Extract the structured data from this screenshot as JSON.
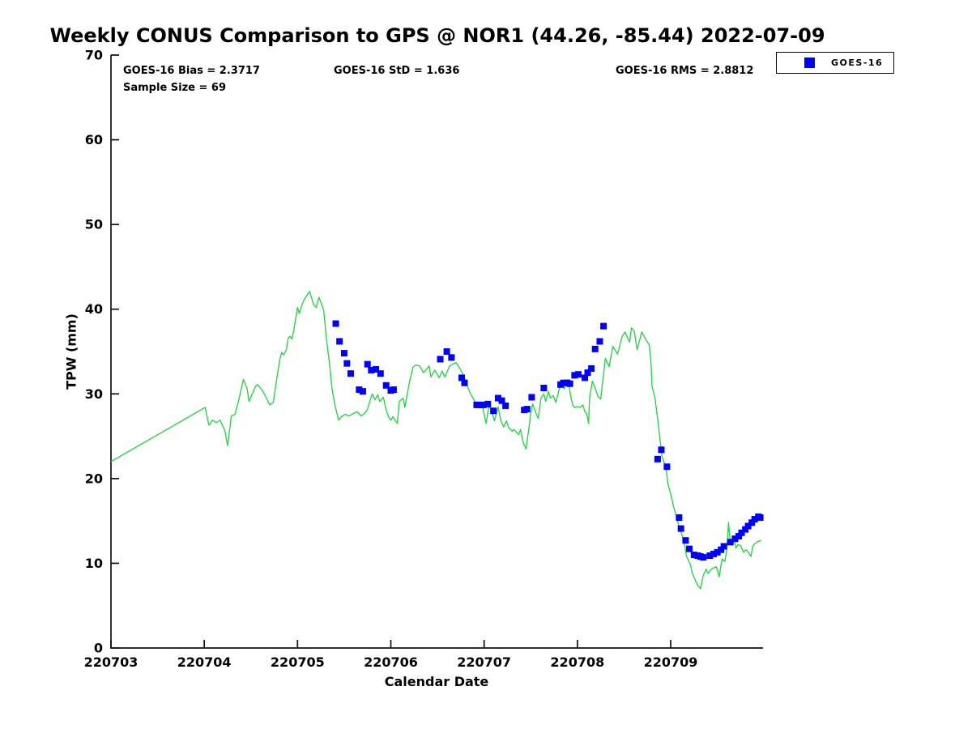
{
  "header": {
    "title": "Weekly CONUS Comparison to GPS @ NOR1 (44.26, -85.44) 2022-07-09"
  },
  "stats": {
    "bias": "GOES-16 Bias = 2.3717",
    "std": "GOES-16 StD = 1.636",
    "rms": "GOES-16 RMS = 2.8812",
    "sample_size": "Sample Size = 69"
  },
  "legend": {
    "label": "GOES-16",
    "marker": "square",
    "marker_color": "#0000ff",
    "position": "top-right"
  },
  "colors": {
    "gps_line": "#2bd44a",
    "goes16_marker": "#0000ff",
    "axis": "#111111",
    "background": "#ffffff"
  },
  "chart_data": {
    "type": "line",
    "title": "Weekly CONUS Comparison to GPS @ NOR1 (44.26, -85.44) 2022-07-09",
    "xlabel": "Calendar Date",
    "ylabel": "TPW (mm)",
    "ylim": [
      0,
      70
    ],
    "xlim_days": [
      0,
      6.99
    ],
    "grid": false,
    "yticks": [
      0,
      10,
      20,
      30,
      40,
      50,
      60,
      70
    ],
    "xtick_labels": [
      "220703",
      "220704",
      "220705",
      "220706",
      "220707",
      "220708",
      "220709"
    ],
    "x_unit": "days since 220703",
    "bias": 2.3717,
    "std": 1.636,
    "rms": 2.8812,
    "sample_size": 69,
    "series": [
      {
        "name": "GPS",
        "type": "line",
        "color": "#2bd44a",
        "points": [
          [
            0.0,
            22.0
          ],
          [
            1.01,
            28.4
          ],
          [
            1.05,
            26.3
          ],
          [
            1.09,
            26.9
          ],
          [
            1.13,
            26.6
          ],
          [
            1.17,
            26.9
          ],
          [
            1.22,
            25.7
          ],
          [
            1.25,
            23.9
          ],
          [
            1.29,
            27.4
          ],
          [
            1.33,
            27.6
          ],
          [
            1.37,
            29.3
          ],
          [
            1.42,
            31.7
          ],
          [
            1.46,
            30.6
          ],
          [
            1.48,
            29.1
          ],
          [
            1.55,
            30.9
          ],
          [
            1.57,
            31.1
          ],
          [
            1.63,
            30.3
          ],
          [
            1.68,
            29.2
          ],
          [
            1.7,
            28.7
          ],
          [
            1.74,
            29.0
          ],
          [
            1.78,
            32.0
          ],
          [
            1.81,
            34.1
          ],
          [
            1.83,
            34.9
          ],
          [
            1.85,
            34.6
          ],
          [
            1.88,
            35.2
          ],
          [
            1.9,
            36.6
          ],
          [
            1.92,
            36.8
          ],
          [
            1.94,
            36.5
          ],
          [
            1.96,
            37.5
          ],
          [
            2.0,
            40.2
          ],
          [
            2.02,
            39.5
          ],
          [
            2.05,
            40.6
          ],
          [
            2.08,
            41.3
          ],
          [
            2.13,
            42.1
          ],
          [
            2.17,
            40.6
          ],
          [
            2.2,
            40.2
          ],
          [
            2.23,
            41.4
          ],
          [
            2.28,
            39.9
          ],
          [
            2.31,
            36.5
          ],
          [
            2.34,
            33.8
          ],
          [
            2.37,
            30.6
          ],
          [
            2.4,
            28.7
          ],
          [
            2.44,
            26.9
          ],
          [
            2.47,
            27.3
          ],
          [
            2.51,
            27.6
          ],
          [
            2.55,
            27.4
          ],
          [
            2.6,
            27.7
          ],
          [
            2.64,
            27.9
          ],
          [
            2.68,
            27.4
          ],
          [
            2.72,
            27.7
          ],
          [
            2.75,
            28.2
          ],
          [
            2.78,
            29.3
          ],
          [
            2.8,
            30.0
          ],
          [
            2.83,
            29.3
          ],
          [
            2.86,
            29.9
          ],
          [
            2.88,
            29.1
          ],
          [
            2.92,
            29.6
          ],
          [
            2.95,
            28.1
          ],
          [
            2.98,
            27.2
          ],
          [
            3.0,
            26.9
          ],
          [
            3.02,
            27.3
          ],
          [
            3.07,
            26.5
          ],
          [
            3.09,
            29.1
          ],
          [
            3.13,
            29.5
          ],
          [
            3.15,
            28.4
          ],
          [
            3.2,
            31.4
          ],
          [
            3.24,
            33.2
          ],
          [
            3.27,
            33.4
          ],
          [
            3.31,
            33.3
          ],
          [
            3.35,
            32.5
          ],
          [
            3.39,
            33.0
          ],
          [
            3.41,
            33.3
          ],
          [
            3.43,
            32.0
          ],
          [
            3.47,
            32.8
          ],
          [
            3.52,
            31.9
          ],
          [
            3.55,
            32.7
          ],
          [
            3.58,
            32.0
          ],
          [
            3.63,
            33.3
          ],
          [
            3.66,
            33.5
          ],
          [
            3.7,
            33.7
          ],
          [
            3.74,
            33.0
          ],
          [
            3.78,
            32.2
          ],
          [
            3.82,
            30.9
          ],
          [
            3.85,
            30.1
          ],
          [
            3.88,
            29.5
          ],
          [
            3.92,
            28.8
          ],
          [
            3.95,
            28.9
          ],
          [
            3.98,
            28.6
          ],
          [
            4.0,
            27.6
          ],
          [
            4.02,
            26.5
          ],
          [
            4.05,
            28.4
          ],
          [
            4.06,
            28.5
          ],
          [
            4.09,
            27.7
          ],
          [
            4.11,
            26.8
          ],
          [
            4.13,
            27.6
          ],
          [
            4.15,
            28.5
          ],
          [
            4.18,
            26.8
          ],
          [
            4.21,
            26.1
          ],
          [
            4.24,
            26.8
          ],
          [
            4.26,
            26.1
          ],
          [
            4.3,
            25.6
          ],
          [
            4.32,
            25.8
          ],
          [
            4.37,
            25.2
          ],
          [
            4.39,
            25.8
          ],
          [
            4.42,
            24.2
          ],
          [
            4.45,
            23.5
          ],
          [
            4.51,
            28.4
          ],
          [
            4.52,
            28.8
          ],
          [
            4.56,
            27.6
          ],
          [
            4.58,
            27.1
          ],
          [
            4.61,
            29.5
          ],
          [
            4.64,
            30.0
          ],
          [
            4.66,
            29.1
          ],
          [
            4.69,
            30.3
          ],
          [
            4.71,
            29.5
          ],
          [
            4.74,
            29.8
          ],
          [
            4.77,
            29.0
          ],
          [
            4.82,
            31.2
          ],
          [
            4.86,
            30.6
          ],
          [
            4.9,
            31.7
          ],
          [
            4.93,
            29.6
          ],
          [
            4.95,
            28.7
          ],
          [
            4.97,
            28.4
          ],
          [
            5.0,
            28.5
          ],
          [
            5.03,
            28.4
          ],
          [
            5.06,
            28.7
          ],
          [
            5.08,
            27.9
          ],
          [
            5.1,
            27.6
          ],
          [
            5.12,
            26.5
          ],
          [
            5.13,
            29.5
          ],
          [
            5.16,
            31.5
          ],
          [
            5.19,
            30.7
          ],
          [
            5.22,
            29.7
          ],
          [
            5.25,
            29.4
          ],
          [
            5.3,
            34.2
          ],
          [
            5.34,
            33.2
          ],
          [
            5.38,
            35.6
          ],
          [
            5.43,
            34.7
          ],
          [
            5.48,
            36.8
          ],
          [
            5.51,
            37.3
          ],
          [
            5.56,
            36.1
          ],
          [
            5.58,
            37.8
          ],
          [
            5.61,
            37.4
          ],
          [
            5.64,
            35.2
          ],
          [
            5.69,
            37.3
          ],
          [
            5.71,
            36.9
          ],
          [
            5.74,
            36.3
          ],
          [
            5.77,
            35.8
          ],
          [
            5.79,
            33.5
          ],
          [
            5.8,
            30.9
          ],
          [
            5.83,
            29.6
          ],
          [
            5.86,
            27.1
          ],
          [
            5.89,
            24.2
          ],
          [
            5.91,
            22.5
          ],
          [
            5.95,
            21.3
          ],
          [
            5.97,
            19.4
          ],
          [
            6.0,
            18.2
          ],
          [
            6.03,
            16.7
          ],
          [
            6.06,
            15.6
          ],
          [
            6.09,
            14.3
          ],
          [
            6.12,
            13.4
          ],
          [
            6.15,
            12.1
          ],
          [
            6.17,
            10.8
          ],
          [
            6.21,
            9.9
          ],
          [
            6.23,
            8.9
          ],
          [
            6.26,
            8.1
          ],
          [
            6.29,
            7.4
          ],
          [
            6.32,
            7.0
          ],
          [
            6.35,
            8.6
          ],
          [
            6.38,
            9.3
          ],
          [
            6.4,
            8.8
          ],
          [
            6.42,
            9.1
          ],
          [
            6.45,
            9.4
          ],
          [
            6.49,
            9.6
          ],
          [
            6.52,
            8.4
          ],
          [
            6.55,
            10.5
          ],
          [
            6.58,
            10.2
          ],
          [
            6.6,
            11.5
          ],
          [
            6.61,
            13.0
          ],
          [
            6.62,
            14.8
          ],
          [
            6.64,
            12.3
          ],
          [
            6.65,
            12.7
          ],
          [
            6.68,
            12.9
          ],
          [
            6.7,
            11.8
          ],
          [
            6.72,
            12.2
          ],
          [
            6.75,
            12.1
          ],
          [
            6.78,
            11.3
          ],
          [
            6.81,
            11.6
          ],
          [
            6.84,
            11.2
          ],
          [
            6.86,
            10.8
          ],
          [
            6.88,
            12.0
          ],
          [
            6.91,
            12.4
          ],
          [
            6.94,
            12.6
          ],
          [
            6.97,
            12.7
          ]
        ]
      },
      {
        "name": "GOES-16",
        "type": "scatter",
        "marker": "square",
        "marker_size": 8,
        "color": "#0000ff",
        "points": [
          [
            2.41,
            38.3
          ],
          [
            2.45,
            36.2
          ],
          [
            2.5,
            34.8
          ],
          [
            2.53,
            33.6
          ],
          [
            2.57,
            32.4
          ],
          [
            2.66,
            30.5
          ],
          [
            2.7,
            30.3
          ],
          [
            2.75,
            33.5
          ],
          [
            2.79,
            32.8
          ],
          [
            2.84,
            32.9
          ],
          [
            2.89,
            32.4
          ],
          [
            2.95,
            31.0
          ],
          [
            3.0,
            30.4
          ],
          [
            3.03,
            30.5
          ],
          [
            3.53,
            34.1
          ],
          [
            3.6,
            35.0
          ],
          [
            3.65,
            34.3
          ],
          [
            3.76,
            31.9
          ],
          [
            3.79,
            31.3
          ],
          [
            3.92,
            28.7
          ],
          [
            3.95,
            28.7
          ],
          [
            3.99,
            28.7
          ],
          [
            4.04,
            28.8
          ],
          [
            4.1,
            28.0
          ],
          [
            4.15,
            29.5
          ],
          [
            4.19,
            29.2
          ],
          [
            4.23,
            28.6
          ],
          [
            4.43,
            28.1
          ],
          [
            4.46,
            28.2
          ],
          [
            4.51,
            29.6
          ],
          [
            4.64,
            30.7
          ],
          [
            4.82,
            31.1
          ],
          [
            4.85,
            31.3
          ],
          [
            4.89,
            31.3
          ],
          [
            4.92,
            31.2
          ],
          [
            4.97,
            32.2
          ],
          [
            5.01,
            32.3
          ],
          [
            5.08,
            31.9
          ],
          [
            5.11,
            32.5
          ],
          [
            5.15,
            33.0
          ],
          [
            5.19,
            35.3
          ],
          [
            5.24,
            36.2
          ],
          [
            5.28,
            38.0
          ],
          [
            5.86,
            22.3
          ],
          [
            5.9,
            23.4
          ],
          [
            5.96,
            21.4
          ],
          [
            6.09,
            15.4
          ],
          [
            6.11,
            14.1
          ],
          [
            6.16,
            12.7
          ],
          [
            6.2,
            11.7
          ],
          [
            6.25,
            11.0
          ],
          [
            6.29,
            10.9
          ],
          [
            6.32,
            10.8
          ],
          [
            6.35,
            10.7
          ],
          [
            6.42,
            10.9
          ],
          [
            6.46,
            11.1
          ],
          [
            6.5,
            11.3
          ],
          [
            6.54,
            11.6
          ],
          [
            6.57,
            12.0
          ],
          [
            6.64,
            12.5
          ],
          [
            6.69,
            12.9
          ],
          [
            6.73,
            13.2
          ],
          [
            6.76,
            13.6
          ],
          [
            6.8,
            14.0
          ],
          [
            6.83,
            14.4
          ],
          [
            6.87,
            14.8
          ],
          [
            6.9,
            15.2
          ],
          [
            6.94,
            15.5
          ],
          [
            6.96,
            15.4
          ]
        ]
      }
    ]
  }
}
